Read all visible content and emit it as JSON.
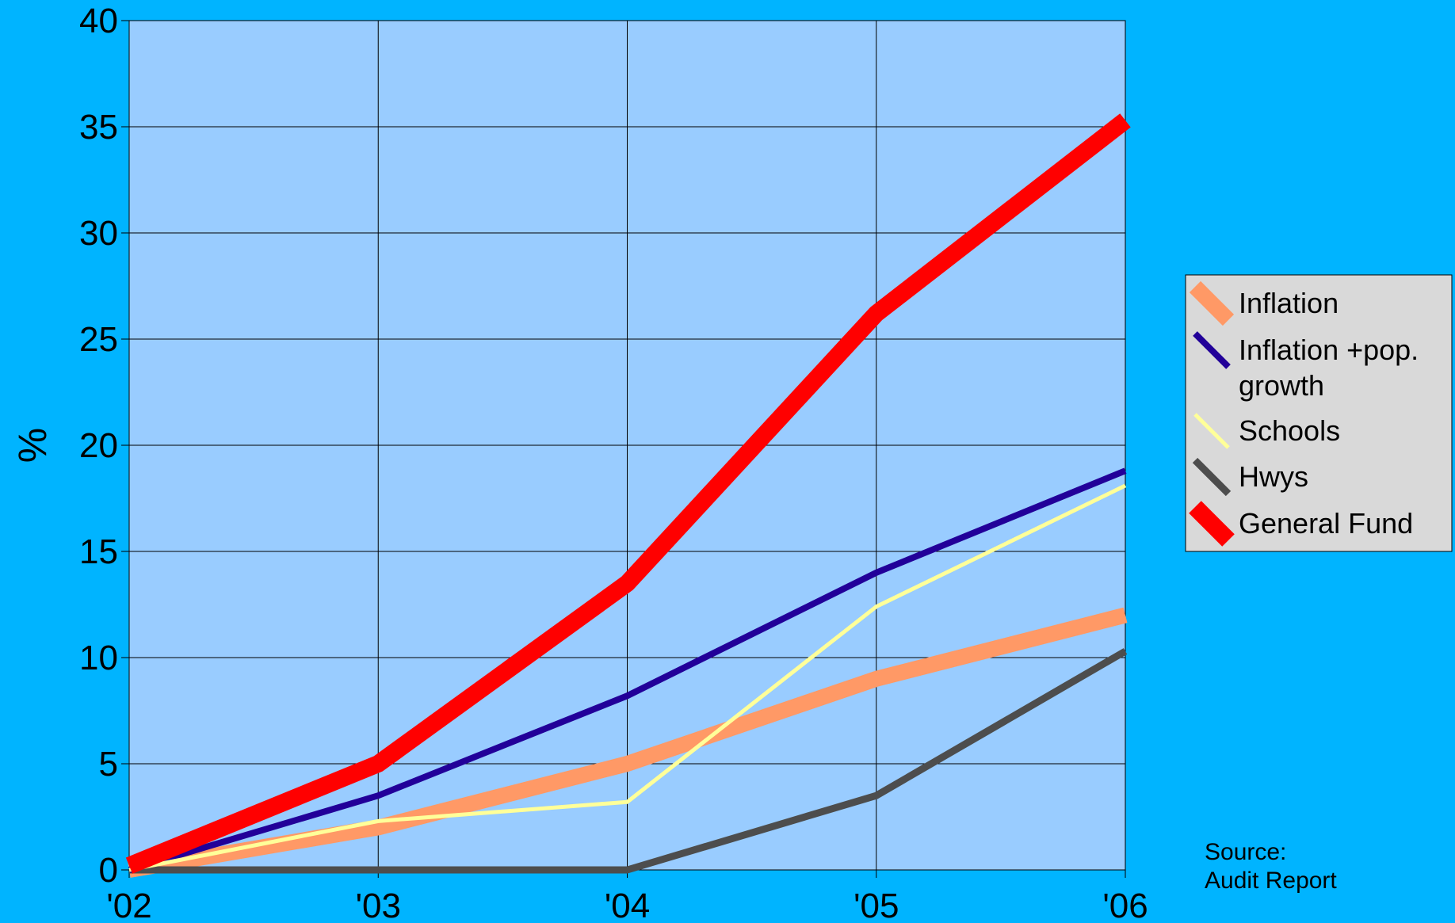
{
  "chart_data": {
    "type": "line",
    "title": "",
    "xlabel": "",
    "ylabel": "%",
    "categories": [
      "'02",
      "'03",
      "'04",
      "'05",
      "'06"
    ],
    "ylim": [
      0,
      40
    ],
    "yticks": [
      0,
      5,
      10,
      15,
      20,
      25,
      30,
      35,
      40
    ],
    "grid": true,
    "legend_position": "right",
    "series": [
      {
        "name": "Inflation",
        "values": [
          0,
          2,
          5,
          9,
          12
        ],
        "color": "#FF9966"
      },
      {
        "name": "Inflation +pop. growth",
        "values": [
          0,
          3.5,
          8.2,
          14,
          18.8
        ],
        "color": "#220099"
      },
      {
        "name": "Schools",
        "values": [
          0,
          2.3,
          3.2,
          12.4,
          18.1
        ],
        "color": "#FFFF99"
      },
      {
        "name": "Hwys",
        "values": [
          0,
          0,
          0,
          3.5,
          10.3
        ],
        "color": "#4D4D4D"
      },
      {
        "name": "General Fund",
        "values": [
          0.2,
          5,
          13.5,
          26.2,
          35.3
        ],
        "color": "#FF0000"
      }
    ],
    "legend_labels": [
      [
        "Inflation"
      ],
      [
        "Inflation +pop.",
        "growth"
      ],
      [
        "Schools"
      ],
      [
        "Hwys"
      ],
      [
        "General Fund"
      ]
    ],
    "annotation": [
      "Source:",
      "Audit Report"
    ],
    "colors": {
      "background": "#00B4FF",
      "plot_area": "#99CCFF",
      "grid": "#000000",
      "legend_bg": "#D9D9D9"
    }
  }
}
